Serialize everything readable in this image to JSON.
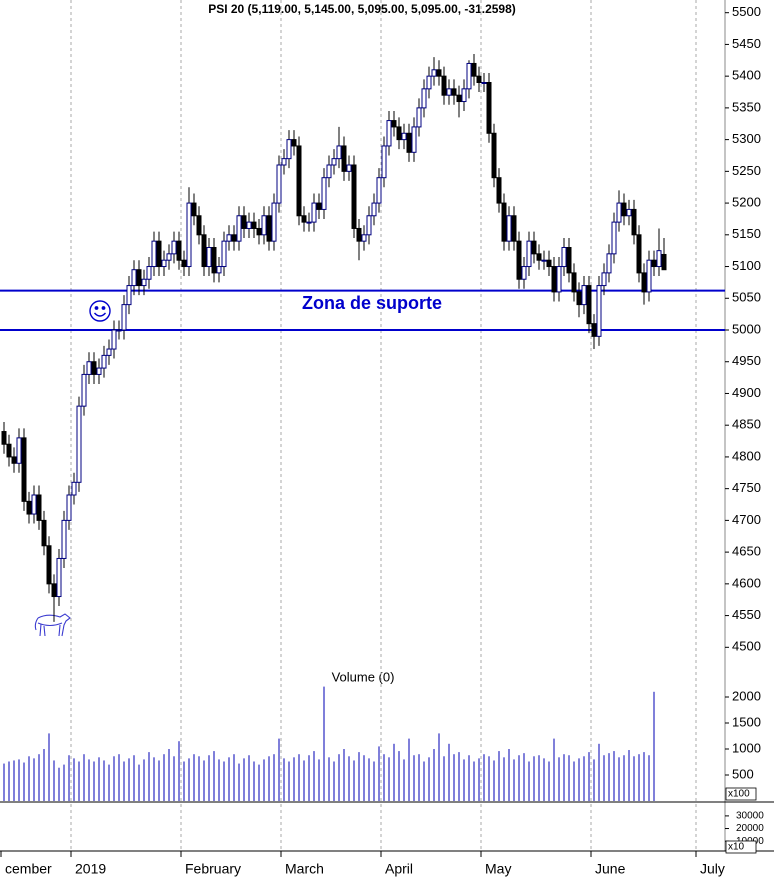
{
  "chart_data": [
    {
      "type": "candlestick",
      "title": "PSI 20 (5,119.00, 5,145.00, 5,095.00, 5,095.00, -31.2598)",
      "categories": [
        "cember",
        null,
        null,
        null,
        null,
        null,
        null,
        null,
        null,
        null,
        null,
        null,
        null,
        null,
        "2019",
        null,
        null,
        null,
        null,
        null,
        null,
        null,
        null,
        null,
        null,
        null,
        null,
        null,
        null,
        null,
        null,
        null,
        null,
        null,
        null,
        null,
        "February",
        null,
        null,
        null,
        null,
        null,
        null,
        null,
        null,
        null,
        null,
        null,
        null,
        null,
        null,
        null,
        null,
        null,
        null,
        null,
        "March",
        null,
        null,
        null,
        null,
        null,
        null,
        null,
        null,
        null,
        null,
        null,
        null,
        null,
        null,
        null,
        null,
        null,
        null,
        null,
        "April",
        null,
        null,
        null,
        null,
        null,
        null,
        null,
        null,
        null,
        null,
        null,
        null,
        null,
        null,
        null,
        null,
        null,
        null,
        null,
        "May",
        null,
        null,
        null,
        null,
        null,
        null,
        null,
        null,
        null,
        null,
        null,
        null,
        null,
        null,
        null,
        null,
        null,
        null,
        null,
        null,
        null,
        "June",
        null,
        null,
        null,
        null,
        null,
        null,
        null,
        null,
        null,
        null,
        null,
        null,
        null,
        null,
        null,
        null,
        null,
        null,
        null,
        null,
        "July"
      ],
      "open": [
        4840,
        4820,
        4800,
        4790,
        4830,
        4730,
        4710,
        4740,
        4700,
        4660,
        4600,
        4580,
        4640,
        4700,
        4740,
        4760,
        4880,
        4930,
        4950,
        4930,
        4940,
        4960,
        4970,
        5000,
        5000,
        5040,
        5070,
        5095,
        5070,
        5080,
        5100,
        5140,
        5100,
        5110,
        5120,
        5140,
        5110,
        5100,
        5200,
        5180,
        5150,
        5100,
        5130,
        5090,
        5100,
        5140,
        5150,
        5140,
        5180,
        5160,
        5170,
        5160,
        5150,
        5180,
        5140,
        5200,
        5260,
        5270,
        5300,
        5290,
        5180,
        5170,
        5170,
        5200,
        5190,
        5240,
        5260,
        5270,
        5290,
        5250,
        5260,
        5160,
        5140,
        5150,
        5180,
        5200,
        5240,
        5290,
        5330,
        5320,
        5300,
        5310,
        5280,
        5320,
        5350,
        5380,
        5400,
        5410,
        5400,
        5370,
        5380,
        5370,
        5360,
        5380,
        5420,
        5400,
        5390,
        5390,
        5310,
        5240,
        5200,
        5140,
        5180,
        5140,
        5080,
        5100,
        5140,
        5120,
        5110,
        5110,
        5100,
        5060,
        5100,
        5130,
        5090,
        5060,
        5040,
        5070,
        5010,
        4990,
        5070,
        5090,
        5120,
        5170,
        5200,
        5180,
        5190,
        5150,
        5090,
        5060,
        5110,
        5100,
        5119,
        null,
        null,
        null,
        null,
        null,
        null,
        null
      ],
      "high": [
        4855,
        4835,
        4815,
        4845,
        4845,
        4745,
        4755,
        4755,
        4715,
        4675,
        4615,
        4655,
        4715,
        4755,
        4775,
        4895,
        4945,
        4965,
        4965,
        4955,
        4975,
        4985,
        5015,
        5015,
        5055,
        5085,
        5110,
        5110,
        5095,
        5115,
        5155,
        5155,
        5125,
        5135,
        5155,
        5155,
        5125,
        5225,
        5215,
        5195,
        5165,
        5145,
        5145,
        5115,
        5155,
        5165,
        5165,
        5195,
        5195,
        5185,
        5185,
        5175,
        5195,
        5195,
        5215,
        5275,
        5285,
        5315,
        5315,
        5305,
        5195,
        5185,
        5215,
        5215,
        5255,
        5275,
        5285,
        5320,
        5305,
        5275,
        5275,
        5175,
        5165,
        5195,
        5215,
        5255,
        5305,
        5345,
        5345,
        5335,
        5325,
        5325,
        5335,
        5365,
        5395,
        5415,
        5430,
        5425,
        5415,
        5395,
        5395,
        5385,
        5395,
        5425,
        5435,
        5415,
        5405,
        5405,
        5325,
        5255,
        5215,
        5195,
        5195,
        5155,
        5115,
        5155,
        5155,
        5135,
        5125,
        5125,
        5115,
        5115,
        5145,
        5145,
        5105,
        5075,
        5085,
        5085,
        5025,
        5085,
        5105,
        5135,
        5185,
        5220,
        5215,
        5205,
        5205,
        5165,
        5105,
        5125,
        5125,
        5160,
        5145,
        null,
        null,
        null,
        null,
        null,
        null,
        null
      ],
      "low": [
        4805,
        4785,
        4775,
        4775,
        4715,
        4695,
        4695,
        4685,
        4645,
        4585,
        4540,
        4565,
        4625,
        4685,
        4725,
        4745,
        4865,
        4915,
        4915,
        4915,
        4925,
        4945,
        4955,
        4985,
        4985,
        5025,
        5055,
        5055,
        5055,
        5065,
        5085,
        5085,
        5085,
        5095,
        5105,
        5095,
        5085,
        5085,
        5165,
        5135,
        5085,
        5085,
        5075,
        5075,
        5085,
        5125,
        5125,
        5125,
        5145,
        5145,
        5145,
        5135,
        5135,
        5125,
        5125,
        5185,
        5245,
        5255,
        5275,
        5165,
        5155,
        5155,
        5155,
        5175,
        5175,
        5225,
        5245,
        5255,
        5235,
        5235,
        5145,
        5110,
        5125,
        5135,
        5165,
        5185,
        5225,
        5275,
        5305,
        5285,
        5285,
        5265,
        5265,
        5305,
        5335,
        5365,
        5385,
        5385,
        5355,
        5355,
        5355,
        5335,
        5345,
        5365,
        5385,
        5375,
        5375,
        5295,
        5225,
        5185,
        5125,
        5125,
        5125,
        5065,
        5065,
        5085,
        5105,
        5095,
        5095,
        5085,
        5045,
        5045,
        5085,
        5075,
        5045,
        5020,
        5025,
        4995,
        4970,
        4975,
        5055,
        5075,
        5105,
        5155,
        5165,
        5165,
        5135,
        5075,
        5040,
        5045,
        5085,
        5085,
        5095,
        null,
        null,
        null,
        null,
        null,
        null,
        null
      ],
      "close": [
        4820,
        4800,
        4790,
        4830,
        4730,
        4710,
        4740,
        4700,
        4660,
        4600,
        4580,
        4640,
        4700,
        4740,
        4760,
        4880,
        4930,
        4950,
        4930,
        4940,
        4960,
        4970,
        5000,
        5000,
        5040,
        5070,
        5095,
        5070,
        5080,
        5100,
        5140,
        5100,
        5110,
        5120,
        5140,
        5110,
        5100,
        5200,
        5180,
        5150,
        5100,
        5130,
        5090,
        5100,
        5140,
        5150,
        5140,
        5180,
        5160,
        5170,
        5160,
        5150,
        5180,
        5140,
        5200,
        5260,
        5270,
        5300,
        5290,
        5180,
        5170,
        5170,
        5200,
        5190,
        5240,
        5260,
        5270,
        5290,
        5250,
        5260,
        5160,
        5140,
        5150,
        5180,
        5200,
        5240,
        5290,
        5330,
        5320,
        5300,
        5310,
        5280,
        5320,
        5350,
        5380,
        5400,
        5410,
        5400,
        5370,
        5380,
        5370,
        5360,
        5380,
        5420,
        5400,
        5390,
        5390,
        5310,
        5240,
        5200,
        5140,
        5180,
        5140,
        5080,
        5100,
        5140,
        5120,
        5110,
        5110,
        5100,
        5060,
        5100,
        5130,
        5090,
        5060,
        5040,
        5070,
        5010,
        4990,
        5070,
        5090,
        5120,
        5170,
        5200,
        5180,
        5190,
        5150,
        5090,
        5060,
        5110,
        5100,
        5125,
        5095,
        null,
        null,
        null,
        null,
        null,
        null,
        null
      ],
      "up_color": "#ffffff",
      "down_color": "#000000",
      "outline_color": "#000080",
      "ylim": [
        4480,
        5520
      ],
      "yticks": [
        4500,
        4550,
        4600,
        4650,
        4700,
        4750,
        4800,
        4850,
        4900,
        4950,
        5000,
        5050,
        5100,
        5150,
        5200,
        5250,
        5300,
        5350,
        5400,
        5450,
        5500
      ],
      "support_lines": [
        5062,
        5000
      ],
      "support_color": "#0000cc",
      "annotation": "Zona de suporte"
    },
    {
      "type": "bar",
      "title": "Volume (0)",
      "color": "#2a2ac0",
      "scale_label": "x100",
      "values": [
        720,
        760,
        780,
        800,
        740,
        860,
        820,
        900,
        1000,
        1300,
        780,
        640,
        700,
        880,
        820,
        760,
        900,
        800,
        760,
        840,
        780,
        700,
        860,
        900,
        760,
        820,
        880,
        700,
        800,
        940,
        840,
        780,
        900,
        1000,
        860,
        1150,
        760,
        820,
        900,
        860,
        780,
        880,
        960,
        800,
        760,
        840,
        900,
        720,
        820,
        880,
        760,
        700,
        800,
        860,
        900,
        1200,
        820,
        760,
        840,
        900,
        780,
        880,
        960,
        800,
        2200,
        840,
        760,
        900,
        1000,
        860,
        780,
        940,
        880,
        820,
        760,
        1050,
        900,
        840,
        1100,
        960,
        800,
        1200,
        880,
        900,
        760,
        840,
        1000,
        1300,
        860,
        1100,
        900,
        940,
        800,
        880,
        760,
        820,
        900,
        860,
        780,
        960,
        840,
        1000,
        800,
        880,
        920,
        760,
        860,
        880,
        820,
        760,
        1200,
        840,
        900,
        880,
        760,
        820,
        860,
        940,
        800,
        1100,
        880,
        920,
        960,
        840,
        880,
        980,
        860,
        900,
        940,
        880,
        2100,
        null,
        null,
        null,
        null,
        null,
        null,
        null
      ],
      "ylim": [
        0,
        2500
      ],
      "yticks": [
        500,
        1000,
        1500,
        2000
      ]
    },
    {
      "type": "indicator",
      "scale_label": "x10",
      "ylim": [
        3000,
        41000
      ],
      "yticks": [
        10000,
        20000,
        30000
      ]
    }
  ]
}
